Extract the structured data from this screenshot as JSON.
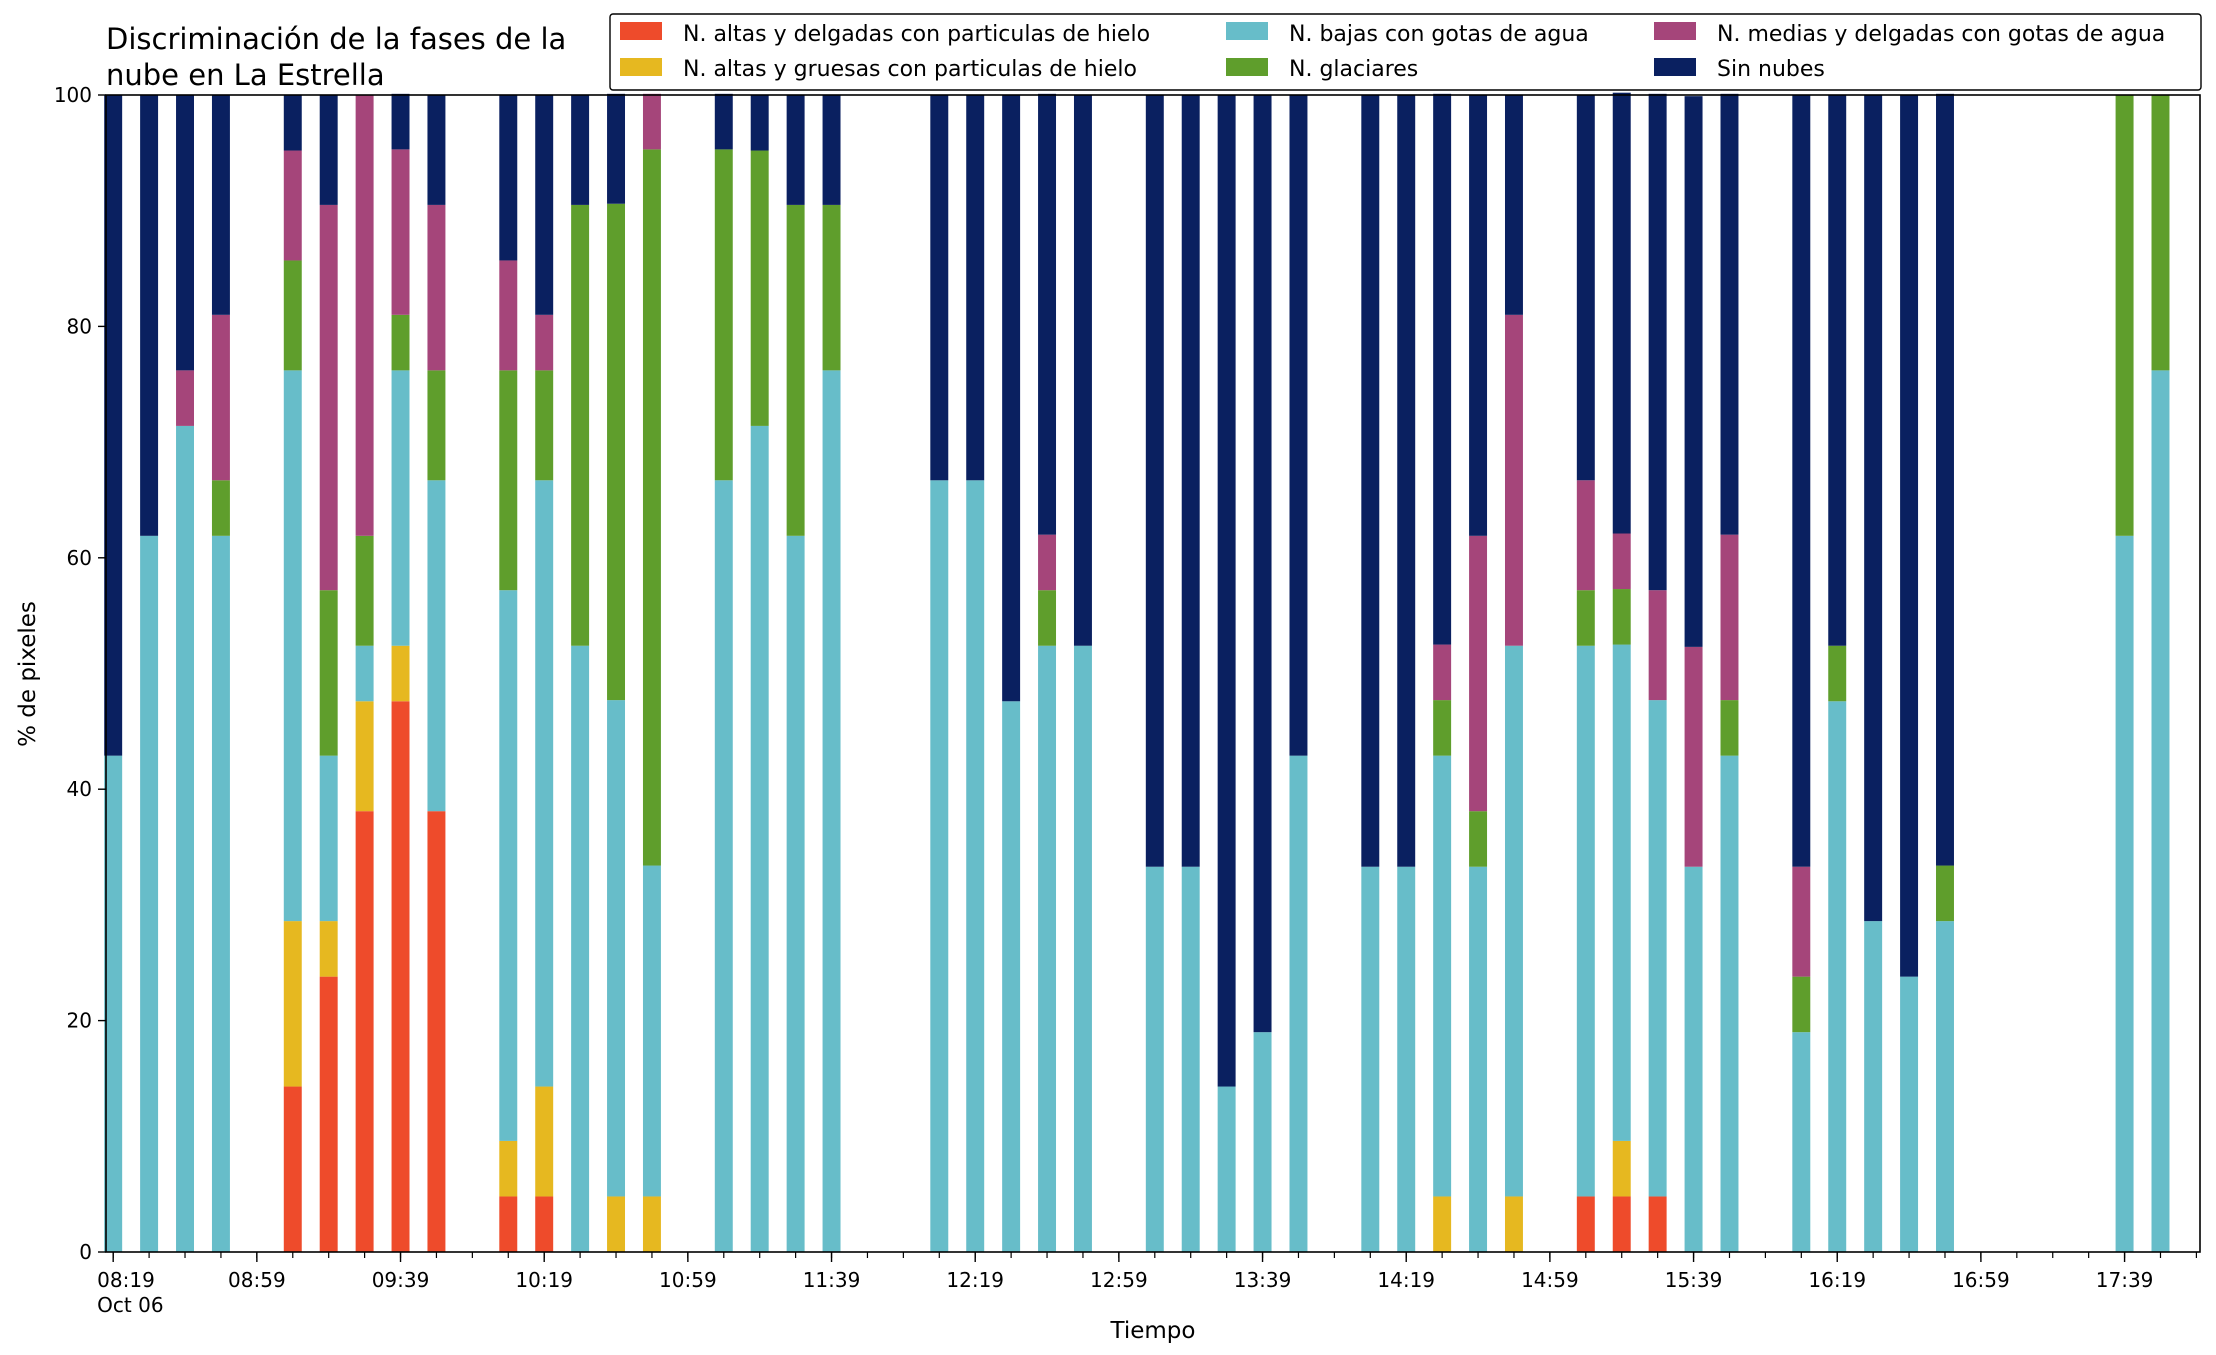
{
  "chart_data": {
    "type": "bar",
    "stacked": true,
    "title": "Discriminación de la fases de la nube en La Estrella",
    "title_lines": [
      "Discriminación de la fases de la",
      "nube en La Estrella"
    ],
    "xlabel": "Tiempo",
    "ylabel": "% de pixeles",
    "ylim": [
      0,
      100
    ],
    "yticks": [
      0,
      20,
      40,
      60,
      80,
      100
    ],
    "x_range_minutes": [
      "08:17",
      "18:00"
    ],
    "bar_width_minutes": 5,
    "xtick_labels": [
      {
        "time": "08:19",
        "label": "08:19",
        "sublabel": "Oct 06"
      },
      {
        "time": "08:59",
        "label": "08:59"
      },
      {
        "time": "09:39",
        "label": "09:39"
      },
      {
        "time": "10:19",
        "label": "10:19"
      },
      {
        "time": "10:59",
        "label": "10:59"
      },
      {
        "time": "11:39",
        "label": "11:39"
      },
      {
        "time": "12:19",
        "label": "12:19"
      },
      {
        "time": "12:59",
        "label": "12:59"
      },
      {
        "time": "13:39",
        "label": "13:39"
      },
      {
        "time": "14:19",
        "label": "14:19"
      },
      {
        "time": "14:59",
        "label": "14:59"
      },
      {
        "time": "15:39",
        "label": "15:39"
      },
      {
        "time": "16:19",
        "label": "16:19"
      },
      {
        "time": "16:59",
        "label": "16:59"
      },
      {
        "time": "17:39",
        "label": "17:39"
      }
    ],
    "minor_tick_step_minutes": 10,
    "legend_position": "top-right",
    "series": [
      {
        "name": "N. altas y delgadas con particulas de hielo",
        "color": "#ee4b2b"
      },
      {
        "name": "N. altas y gruesas con particulas de hielo",
        "color": "#e6b820"
      },
      {
        "name": "N. bajas con gotas de agua",
        "color": "#67bdc9"
      },
      {
        "name": "N. glaciares",
        "color": "#5f9e2c"
      },
      {
        "name": "N. medias y delgadas con gotas de agua",
        "color": "#a5457a"
      },
      {
        "name": "Sin nubes",
        "color": "#0a2060"
      }
    ],
    "bars": [
      {
        "time": "08:19",
        "values": [
          0,
          0,
          42.9,
          0,
          0,
          57.1
        ]
      },
      {
        "time": "08:29",
        "values": [
          0,
          0,
          61.9,
          0,
          0,
          38.1
        ]
      },
      {
        "time": "08:39",
        "values": [
          0,
          0,
          71.4,
          0,
          4.8,
          23.8
        ]
      },
      {
        "time": "08:49",
        "values": [
          0,
          0,
          61.9,
          4.8,
          14.3,
          19.0
        ]
      },
      {
        "time": "09:09",
        "values": [
          14.3,
          14.3,
          47.6,
          9.5,
          9.5,
          4.8
        ]
      },
      {
        "time": "09:19",
        "values": [
          23.8,
          4.8,
          14.3,
          14.3,
          33.3,
          9.5
        ]
      },
      {
        "time": "09:29",
        "values": [
          38.1,
          9.5,
          4.8,
          9.5,
          38.1,
          0
        ]
      },
      {
        "time": "09:39",
        "values": [
          47.6,
          4.8,
          23.8,
          4.8,
          14.3,
          4.8
        ]
      },
      {
        "time": "09:49",
        "values": [
          38.1,
          0,
          28.6,
          9.5,
          14.3,
          9.5
        ]
      },
      {
        "time": "10:09",
        "values": [
          4.8,
          4.8,
          47.6,
          19.0,
          9.5,
          14.3
        ]
      },
      {
        "time": "10:19",
        "values": [
          4.8,
          9.5,
          52.4,
          9.5,
          4.8,
          19.0
        ]
      },
      {
        "time": "10:29",
        "values": [
          0,
          0,
          52.4,
          38.1,
          0,
          9.5
        ]
      },
      {
        "time": "10:39",
        "values": [
          0,
          4.8,
          42.9,
          42.9,
          0,
          9.5
        ]
      },
      {
        "time": "10:49",
        "values": [
          0,
          4.8,
          28.6,
          61.9,
          4.8,
          0
        ]
      },
      {
        "time": "11:09",
        "values": [
          0,
          0,
          66.7,
          28.6,
          0,
          4.8
        ]
      },
      {
        "time": "11:19",
        "values": [
          0,
          0,
          71.4,
          23.8,
          0,
          4.8
        ]
      },
      {
        "time": "11:29",
        "values": [
          0,
          0,
          61.9,
          28.6,
          0,
          9.5
        ]
      },
      {
        "time": "11:39",
        "values": [
          0,
          0,
          76.2,
          14.3,
          0,
          9.5
        ]
      },
      {
        "time": "12:09",
        "values": [
          0,
          0,
          66.7,
          0,
          0,
          33.3
        ]
      },
      {
        "time": "12:19",
        "values": [
          0,
          0,
          66.7,
          0,
          0,
          33.3
        ]
      },
      {
        "time": "12:29",
        "values": [
          0,
          0,
          47.6,
          0,
          0,
          52.4
        ]
      },
      {
        "time": "12:39",
        "values": [
          0,
          0,
          52.4,
          4.8,
          4.8,
          38.1
        ]
      },
      {
        "time": "12:49",
        "values": [
          0,
          0,
          52.4,
          0,
          0,
          47.6
        ]
      },
      {
        "time": "13:09",
        "values": [
          0,
          0,
          33.3,
          0,
          0,
          66.7
        ]
      },
      {
        "time": "13:19",
        "values": [
          0,
          0,
          33.3,
          0,
          0,
          66.7
        ]
      },
      {
        "time": "13:29",
        "values": [
          0,
          0,
          14.3,
          0,
          0,
          85.7
        ]
      },
      {
        "time": "13:39",
        "values": [
          0,
          0,
          19.0,
          0,
          0,
          81.0
        ]
      },
      {
        "time": "13:49",
        "values": [
          0,
          0,
          42.9,
          0,
          0,
          57.1
        ]
      },
      {
        "time": "14:09",
        "values": [
          0,
          0,
          33.3,
          0,
          0,
          66.7
        ]
      },
      {
        "time": "14:19",
        "values": [
          0,
          0,
          33.3,
          0,
          0,
          66.7
        ]
      },
      {
        "time": "14:29",
        "values": [
          0,
          4.8,
          38.1,
          4.8,
          4.8,
          47.6
        ]
      },
      {
        "time": "14:39",
        "values": [
          0,
          0,
          33.3,
          4.8,
          23.8,
          38.1
        ]
      },
      {
        "time": "14:49",
        "values": [
          0,
          4.8,
          47.6,
          0,
          28.6,
          19.0
        ]
      },
      {
        "time": "15:09",
        "values": [
          4.8,
          0,
          47.6,
          4.8,
          9.5,
          33.3
        ]
      },
      {
        "time": "15:19",
        "values": [
          4.8,
          4.8,
          42.9,
          4.8,
          4.8,
          38.1
        ]
      },
      {
        "time": "15:29",
        "values": [
          4.8,
          0,
          42.9,
          0,
          9.5,
          42.9
        ]
      },
      {
        "time": "15:39",
        "values": [
          0,
          0,
          33.3,
          0,
          19.0,
          47.6
        ]
      },
      {
        "time": "15:49",
        "values": [
          0,
          0,
          42.9,
          4.8,
          14.3,
          38.1
        ]
      },
      {
        "time": "16:09",
        "values": [
          0,
          0,
          19.0,
          4.8,
          9.5,
          66.7
        ]
      },
      {
        "time": "16:19",
        "values": [
          0,
          0,
          47.6,
          4.8,
          0,
          47.6
        ]
      },
      {
        "time": "16:29",
        "values": [
          0,
          0,
          28.6,
          0,
          0,
          71.4
        ]
      },
      {
        "time": "16:39",
        "values": [
          0,
          0,
          23.8,
          0,
          0,
          76.2
        ]
      },
      {
        "time": "16:49",
        "values": [
          0,
          0,
          28.6,
          4.8,
          0,
          66.7
        ]
      },
      {
        "time": "17:39",
        "values": [
          0,
          0,
          61.9,
          38.1,
          0,
          0
        ]
      },
      {
        "time": "17:49",
        "values": [
          0,
          0,
          76.2,
          23.8,
          0,
          0
        ]
      }
    ]
  }
}
